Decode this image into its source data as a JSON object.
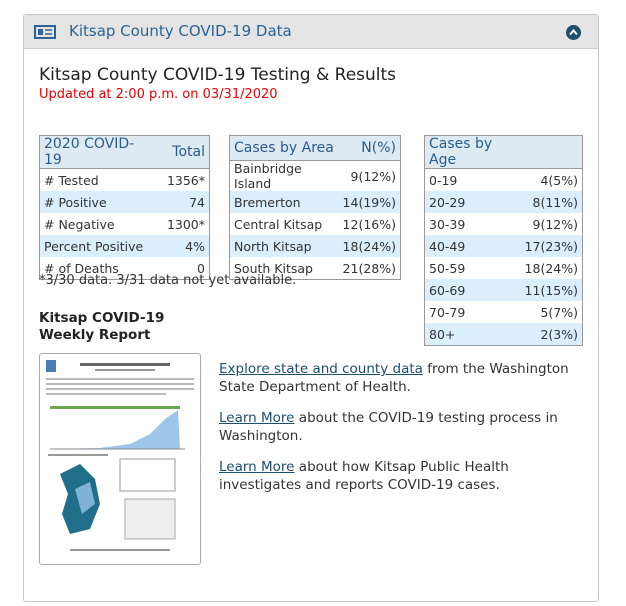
{
  "header": {
    "title": "Kitsap County COVID-19 Data"
  },
  "page": {
    "title": "Kitsap County COVID-19 Testing & Results",
    "updated": "Updated at 2:00 p.m. on 03/31/2020"
  },
  "tables": [
    {
      "headers": [
        "2020 COVID-19",
        "Total"
      ],
      "rows": [
        [
          "# Tested",
          "1356*"
        ],
        [
          "# Positive",
          "74"
        ],
        [
          "# Negative",
          "1300*"
        ],
        [
          "Percent Positive",
          "4%"
        ],
        [
          "# of Deaths",
          "0"
        ]
      ]
    },
    {
      "headers": [
        "Cases by Area",
        "N(%)"
      ],
      "rows": [
        [
          "Bainbridge Island",
          "9(12%)"
        ],
        [
          "Bremerton",
          "14(19%)"
        ],
        [
          "Central Kitsap",
          "12(16%)"
        ],
        [
          "North Kitsap",
          "18(24%)"
        ],
        [
          "South Kitsap",
          "21(28%)"
        ]
      ]
    },
    {
      "headers": [
        "Cases by Age",
        ""
      ],
      "rows": [
        [
          "0-19",
          "4(5%)"
        ],
        [
          "20-29",
          "8(11%)"
        ],
        [
          "30-39",
          "9(12%)"
        ],
        [
          "40-49",
          "17(23%)"
        ],
        [
          "50-59",
          "18(24%)"
        ],
        [
          "60-69",
          "11(15%)"
        ],
        [
          "70-79",
          "5(7%)"
        ],
        [
          "80+",
          "2(3%)"
        ]
      ]
    }
  ],
  "footnote": "*3/30 data. 3/31 data not yet available.",
  "report": {
    "title": [
      "Kitsap COVID-19",
      "Weekly Report"
    ]
  },
  "links": [
    {
      "link": "Explore state and county data",
      "text": " from the Washington State Department of Health."
    },
    {
      "link": "Learn More",
      "text": " about the COVID-19 testing process in Washington."
    },
    {
      "link": "Learn More",
      "text": " about how Kitsap Public Health investigates and reports COVID-19 cases."
    }
  ]
}
